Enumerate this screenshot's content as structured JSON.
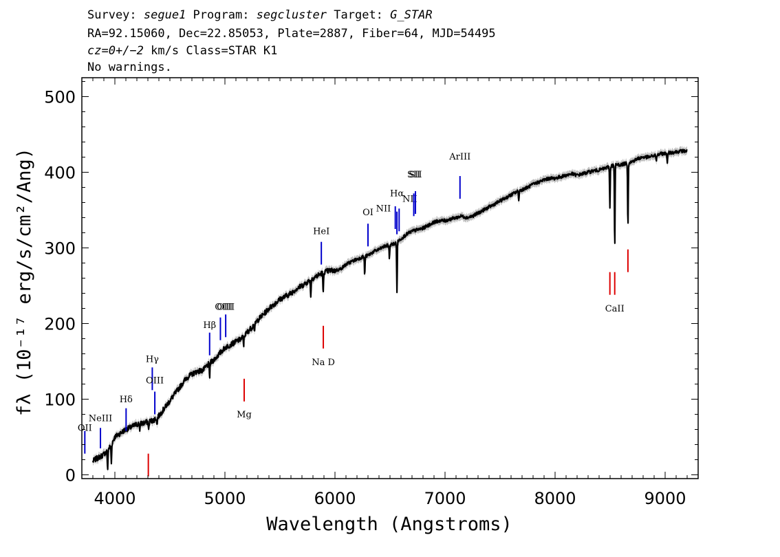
{
  "header": {
    "line1": {
      "survey_label": "Survey: ",
      "survey": "segue1",
      "program_label": " Program: ",
      "program": "segcluster",
      "target_label": " Target: ",
      "target": "G_STAR"
    },
    "line2": "RA=92.15060, Dec=22.85053, Plate=2887, Fiber=64, MJD=54495",
    "line3": {
      "cz_label": "cz",
      "cz_value": "=0+/−2",
      "cz_rest": " km/s Class=STAR K1"
    },
    "line4": "No warnings."
  },
  "chart_data": {
    "type": "line",
    "title": "",
    "xlabel": "Wavelength (Angstroms)",
    "ylabel": "fλ (10⁻¹⁷ erg/s/cm²/Ang)",
    "xlim": [
      3700,
      9300
    ],
    "ylim": [
      -5,
      525
    ],
    "xticks": [
      4000,
      5000,
      6000,
      7000,
      8000,
      9000
    ],
    "yticks": [
      0,
      100,
      200,
      300,
      400,
      500
    ],
    "grid": false,
    "colors": {
      "flux": "#000000",
      "error": "#bdbdbd",
      "emission_marker": "#0000cc",
      "absorption_marker": "#dd0000"
    },
    "series": [
      {
        "role": "flux",
        "x": [
          3800,
          3840,
          3880,
          3920,
          3960,
          4000,
          4050,
          4100,
          4150,
          4200,
          4250,
          4300,
          4350,
          4400,
          4450,
          4500,
          4550,
          4600,
          4650,
          4700,
          4750,
          4800,
          4850,
          4900,
          4950,
          5000,
          5050,
          5100,
          5150,
          5200,
          5250,
          5300,
          5350,
          5400,
          5450,
          5500,
          5550,
          5600,
          5650,
          5700,
          5750,
          5800,
          5850,
          5900,
          5950,
          6000,
          6050,
          6100,
          6150,
          6200,
          6250,
          6300,
          6350,
          6400,
          6450,
          6500,
          6550,
          6600,
          6650,
          6700,
          6750,
          6800,
          6850,
          6900,
          6950,
          7000,
          7050,
          7100,
          7150,
          7200,
          7250,
          7300,
          7350,
          7400,
          7450,
          7500,
          7550,
          7600,
          7650,
          7700,
          7750,
          7800,
          7850,
          7900,
          7950,
          8000,
          8050,
          8100,
          8150,
          8200,
          8250,
          8300,
          8350,
          8400,
          8450,
          8500,
          8550,
          8600,
          8650,
          8700,
          8750,
          8800,
          8850,
          8900,
          8950,
          9000,
          9050,
          9100,
          9150,
          9200
        ],
        "y": [
          18,
          22,
          25,
          30,
          38,
          50,
          55,
          60,
          63,
          67,
          68,
          70,
          72,
          78,
          88,
          98,
          108,
          118,
          128,
          133,
          137,
          138,
          146,
          152,
          160,
          168,
          172,
          176,
          180,
          188,
          196,
          205,
          212,
          220,
          226,
          232,
          236,
          240,
          246,
          250,
          255,
          260,
          264,
          268,
          270,
          270,
          272,
          278,
          282,
          285,
          288,
          290,
          295,
          298,
          302,
          304,
          306,
          312,
          318,
          322,
          324,
          326,
          330,
          334,
          336,
          336,
          338,
          340,
          342,
          340,
          342,
          346,
          350,
          354,
          358,
          362,
          366,
          370,
          374,
          377,
          380,
          384,
          387,
          390,
          392,
          392,
          394,
          396,
          398,
          396,
          398,
          400,
          402,
          403,
          405,
          408,
          410,
          410,
          412,
          414,
          418,
          420,
          420,
          422,
          424,
          425,
          426,
          427,
          428,
          428
        ]
      }
    ],
    "absorption_dips": [
      {
        "x": 3934,
        "depth": 28
      },
      {
        "x": 3968,
        "depth": 25
      },
      {
        "x": 4227,
        "depth": 8
      },
      {
        "x": 4307,
        "depth": 12
      },
      {
        "x": 4383,
        "depth": 10
      },
      {
        "x": 4861,
        "depth": 18
      },
      {
        "x": 5170,
        "depth": 12
      },
      {
        "x": 5270,
        "depth": 10
      },
      {
        "x": 5780,
        "depth": 22
      },
      {
        "x": 5893,
        "depth": 30
      },
      {
        "x": 6270,
        "depth": 25
      },
      {
        "x": 6495,
        "depth": 18
      },
      {
        "x": 6563,
        "depth": 65
      },
      {
        "x": 7670,
        "depth": 12
      },
      {
        "x": 8498,
        "depth": 55
      },
      {
        "x": 8542,
        "depth": 110
      },
      {
        "x": 8662,
        "depth": 85
      },
      {
        "x": 8920,
        "depth": 10
      },
      {
        "x": 9020,
        "depth": 15
      }
    ],
    "emission_lines": [
      {
        "label": "OII",
        "x": 3727,
        "y0": 28,
        "y1": 58,
        "lx": 3727,
        "ly": 58
      },
      {
        "label": "NeIII",
        "x": 3869,
        "y0": 35,
        "y1": 62,
        "lx": 3869,
        "ly": 71
      },
      {
        "label": "Hδ",
        "x": 4102,
        "y0": 58,
        "y1": 88,
        "lx": 4102,
        "ly": 96
      },
      {
        "label": "Hγ",
        "x": 4340,
        "y0": 112,
        "y1": 142,
        "lx": 4340,
        "ly": 149
      },
      {
        "label": "OIII",
        "x": 4363,
        "y0": 80,
        "y1": 110,
        "lx": 4363,
        "ly": 121
      },
      {
        "label": "Hβ",
        "x": 4861,
        "y0": 158,
        "y1": 188,
        "lx": 4861,
        "ly": 194
      },
      {
        "label": "OIII",
        "x": 4959,
        "y0": 178,
        "y1": 208,
        "lx": 4990,
        "ly": 218
      },
      {
        "label": "OIII",
        "x": 5007,
        "y0": 182,
        "y1": 212,
        "lx": 5007,
        "ly": 218
      },
      {
        "label": "HeI",
        "x": 5876,
        "y0": 278,
        "y1": 308,
        "lx": 5876,
        "ly": 318
      },
      {
        "label": "OI",
        "x": 6300,
        "y0": 302,
        "y1": 332,
        "lx": 6300,
        "ly": 343
      },
      {
        "label": "NII",
        "x": 6548,
        "y0": 325,
        "y1": 355,
        "lx": 6440,
        "ly": 348
      },
      {
        "label": "Hα",
        "x": 6563,
        "y0": 318,
        "y1": 348,
        "lx": 6563,
        "ly": 368
      },
      {
        "label": "NII",
        "x": 6583,
        "y0": 322,
        "y1": 352,
        "lx": 6680,
        "ly": 361
      },
      {
        "label": "SII",
        "x": 6716,
        "y0": 342,
        "y1": 372,
        "lx": 6716,
        "ly": 393
      },
      {
        "label": "SII",
        "x": 6731,
        "y0": 345,
        "y1": 375,
        "lx": 6731,
        "ly": 393
      },
      {
        "label": "ArIII",
        "x": 7136,
        "y0": 365,
        "y1": 395,
        "lx": 7136,
        "ly": 417
      }
    ],
    "absorption_lines": [
      {
        "label": "",
        "x": 4304,
        "y0": -2,
        "y1": 28
      },
      {
        "label": "Mg",
        "x": 5175,
        "y0": 97,
        "y1": 127,
        "lx": 5175,
        "ly": 76
      },
      {
        "label": "Na D",
        "x": 5894,
        "y0": 167,
        "y1": 197,
        "lx": 5894,
        "ly": 145
      },
      {
        "label": "CaII",
        "x": 8498,
        "y0": 238,
        "y1": 268,
        "lx": 8542,
        "ly": 216
      },
      {
        "label": "",
        "x": 8542,
        "y0": 238,
        "y1": 268
      },
      {
        "label": "",
        "x": 8662,
        "y0": 268,
        "y1": 298
      }
    ]
  }
}
